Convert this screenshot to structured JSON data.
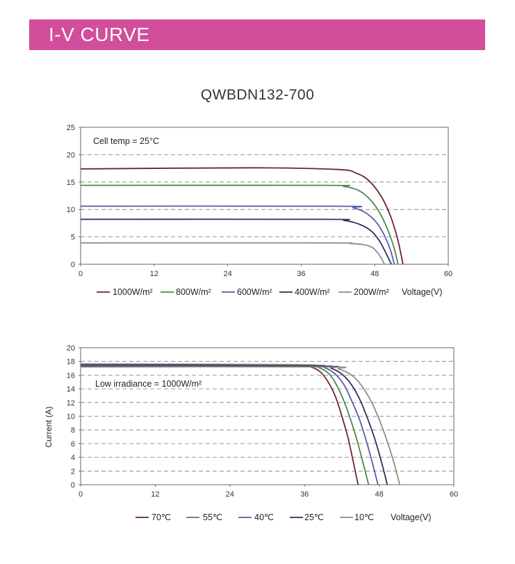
{
  "header": {
    "title": "I-V CURVE"
  },
  "model": "QWBDN132-700",
  "chart_data": [
    {
      "type": "line",
      "annotation": "Cell temp = 25°C",
      "xlabel": "Voltage(V)",
      "ylabel": "",
      "xlim": [
        0,
        60
      ],
      "ylim": [
        0,
        25
      ],
      "xticks": [
        0,
        12,
        24,
        36,
        48,
        60
      ],
      "yticks": [
        0,
        5,
        10,
        15,
        20,
        25
      ],
      "grid": "horizontal-dashed",
      "legend_position": "bottom",
      "series": [
        {
          "name": "1000W/m²",
          "color": "#6b2233",
          "isc": 17.4,
          "voc": 52.6,
          "points": [
            [
              0,
              17.4
            ],
            [
              28,
              17.6
            ],
            [
              42,
              17.3
            ],
            [
              45,
              16.6
            ],
            [
              47,
              15.3
            ],
            [
              49,
              12.5
            ],
            [
              50.5,
              9.0
            ],
            [
              51.6,
              5.2
            ],
            [
              52.2,
              2.3
            ],
            [
              52.6,
              0
            ]
          ]
        },
        {
          "name": "800W/m²",
          "color": "#4a8a4a",
          "isc": 14.4,
          "voc": 51.8,
          "points": [
            [
              0,
              14.4
            ],
            [
              40,
              14.4
            ],
            [
              43,
              14.2
            ],
            [
              45.5,
              13.4
            ],
            [
              47.5,
              11.5
            ],
            [
              49,
              9.0
            ],
            [
              50.3,
              5.8
            ],
            [
              51.2,
              2.8
            ],
            [
              51.8,
              0
            ]
          ]
        },
        {
          "name": "600W/m²",
          "color": "#5a5aa8",
          "isc": 10.6,
          "voc": 51.2,
          "points": [
            [
              0,
              10.6
            ],
            [
              42,
              10.6
            ],
            [
              44.5,
              10.3
            ],
            [
              46.5,
              9.4
            ],
            [
              48.3,
              7.6
            ],
            [
              49.6,
              5.2
            ],
            [
              50.5,
              2.8
            ],
            [
              51.2,
              0
            ]
          ]
        },
        {
          "name": "400W/m²",
          "color": "#2e2e5e",
          "isc": 8.2,
          "voc": 50.7,
          "points": [
            [
              0,
              8.2
            ],
            [
              40,
              8.2
            ],
            [
              43,
              8.0
            ],
            [
              45.5,
              7.3
            ],
            [
              47.5,
              6.0
            ],
            [
              48.8,
              4.2
            ],
            [
              49.8,
              2.1
            ],
            [
              50.7,
              0
            ]
          ]
        },
        {
          "name": "200W/m²",
          "color": "#8c8c8c",
          "isc": 3.9,
          "voc": 49.6,
          "points": [
            [
              0,
              3.9
            ],
            [
              40,
              3.9
            ],
            [
              44,
              3.8
            ],
            [
              46.5,
              3.5
            ],
            [
              47.8,
              2.9
            ],
            [
              48.8,
              1.6
            ],
            [
              49.6,
              0
            ]
          ]
        }
      ]
    },
    {
      "type": "line",
      "annotation": "Low irradiance = 1000W/m²",
      "xlabel": "Voltage(V)",
      "ylabel": "Current (A)",
      "xlim": [
        0,
        60
      ],
      "ylim": [
        0,
        20
      ],
      "xticks": [
        0,
        12,
        24,
        36,
        48,
        60
      ],
      "yticks": [
        0,
        2,
        4,
        6,
        8,
        10,
        12,
        14,
        16,
        18,
        20
      ],
      "grid": "horizontal-dashed",
      "legend_position": "bottom",
      "series": [
        {
          "name": "70℃",
          "color": "#6b2233",
          "voc": 44.6,
          "points": [
            [
              0,
              17.6
            ],
            [
              35,
              17.5
            ],
            [
              37,
              17.2
            ],
            [
              38.5,
              16.5
            ],
            [
              39.8,
              15.0
            ],
            [
              41,
              12.8
            ],
            [
              42,
              10.0
            ],
            [
              43,
              6.8
            ],
            [
              43.8,
              3.5
            ],
            [
              44.6,
              0
            ]
          ]
        },
        {
          "name": "55℃",
          "color": "#4a8a4a",
          "voc": 46.3,
          "points": [
            [
              0,
              17.5
            ],
            [
              36,
              17.45
            ],
            [
              38,
              17.2
            ],
            [
              39.8,
              16.3
            ],
            [
              41,
              14.8
            ],
            [
              42.2,
              12.5
            ],
            [
              43.3,
              9.8
            ],
            [
              44.4,
              6.6
            ],
            [
              45.4,
              3.2
            ],
            [
              46.3,
              0
            ]
          ]
        },
        {
          "name": "40℃",
          "color": "#5a5aa8",
          "voc": 47.8,
          "points": [
            [
              0,
              17.4
            ],
            [
              37,
              17.35
            ],
            [
              39.2,
              17.1
            ],
            [
              41,
              16.1
            ],
            [
              42.4,
              14.5
            ],
            [
              43.6,
              12.2
            ],
            [
              44.8,
              9.6
            ],
            [
              45.9,
              6.5
            ],
            [
              46.9,
              3.2
            ],
            [
              47.8,
              0
            ]
          ]
        },
        {
          "name": "25℃",
          "color": "#2e2e5e",
          "voc": 49.3,
          "points": [
            [
              0,
              17.3
            ],
            [
              38,
              17.3
            ],
            [
              40.3,
              17.0
            ],
            [
              42.2,
              16.0
            ],
            [
              43.7,
              14.4
            ],
            [
              45,
              12.2
            ],
            [
              46.2,
              9.5
            ],
            [
              47.4,
              6.4
            ],
            [
              48.4,
              3.2
            ],
            [
              49.3,
              0
            ]
          ]
        },
        {
          "name": "10℃",
          "color": "#8c8c8c",
          "voc": 51.3,
          "points": [
            [
              0,
              17.2
            ],
            [
              39,
              17.2
            ],
            [
              41.5,
              16.9
            ],
            [
              43.7,
              15.9
            ],
            [
              45.3,
              14.3
            ],
            [
              46.8,
              12.0
            ],
            [
              48.1,
              9.3
            ],
            [
              49.3,
              6.3
            ],
            [
              50.4,
              3.1
            ],
            [
              51.3,
              0
            ]
          ]
        }
      ]
    }
  ]
}
